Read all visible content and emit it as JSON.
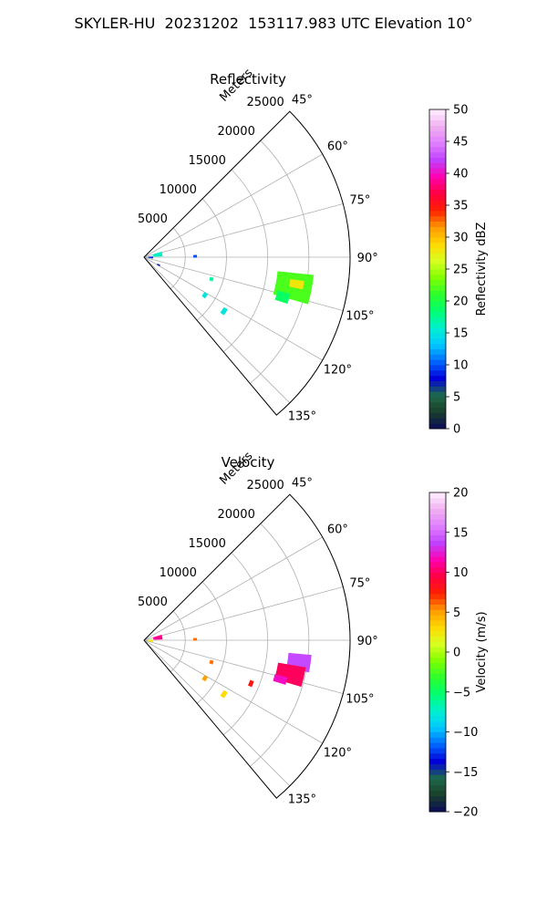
{
  "figure": {
    "title": "SKYLER-HU  20231202  153117.983 UTC Elevation 10°"
  },
  "chart_data": [
    {
      "type": "ppi-sector",
      "title": "Reflectivity",
      "range_label": "Meters",
      "range_ticks": [
        5000,
        10000,
        15000,
        20000,
        25000
      ],
      "range_max": 25000,
      "azimuth_ticks": [
        "45°",
        "60°",
        "75°",
        "90°",
        "105°",
        "120°",
        "135°"
      ],
      "azimuth_range_deg": [
        45,
        140
      ],
      "grid": true,
      "colorbar": {
        "label": "Reflectivity dBZ",
        "min": 0,
        "max": 50,
        "ticks": [
          "0",
          "5",
          "10",
          "15",
          "20",
          "25",
          "30",
          "35",
          "40",
          "45",
          "50"
        ],
        "stops": [
          "#0b0b5a",
          "#1a3f2a",
          "#1e6a4a",
          "#0000d8",
          "#0066ff",
          "#00c8ff",
          "#00f0d0",
          "#00ff70",
          "#2cff2c",
          "#80ff00",
          "#d8ff20",
          "#ffd800",
          "#ff9a00",
          "#ff2000",
          "#ff0040",
          "#ff00b0",
          "#c040ff",
          "#e080ff",
          "#f0b0f0",
          "#fff0ff"
        ]
      },
      "echoes": [
        {
          "range_m": 18500,
          "azimuth_deg": 101,
          "radial_extent_m": 4400,
          "az_extent_deg": 10,
          "value": 22
        },
        {
          "range_m": 18800,
          "azimuth_deg": 100,
          "radial_extent_m": 1700,
          "az_extent_deg": 3,
          "value": 28
        },
        {
          "range_m": 17500,
          "azimuth_deg": 106,
          "radial_extent_m": 1600,
          "az_extent_deg": 4,
          "value": 19
        },
        {
          "range_m": 1700,
          "azimuth_deg": 80,
          "radial_extent_m": 1100,
          "az_extent_deg": 15,
          "value": 16
        },
        {
          "range_m": 800,
          "azimuth_deg": 92,
          "radial_extent_m": 600,
          "az_extent_deg": 14,
          "value": 9
        },
        {
          "range_m": 6200,
          "azimuth_deg": 89,
          "radial_extent_m": 450,
          "az_extent_deg": 3,
          "value": 10
        },
        {
          "range_m": 8600,
          "azimuth_deg": 108,
          "radial_extent_m": 450,
          "az_extent_deg": 3,
          "value": 17
        },
        {
          "range_m": 8700,
          "azimuth_deg": 122,
          "radial_extent_m": 500,
          "az_extent_deg": 4,
          "value": 15
        },
        {
          "range_m": 11700,
          "azimuth_deg": 124,
          "radial_extent_m": 550,
          "az_extent_deg": 4,
          "value": 15
        },
        {
          "range_m": 2000,
          "azimuth_deg": 118,
          "radial_extent_m": 400,
          "az_extent_deg": 5,
          "value": 7
        }
      ]
    },
    {
      "type": "ppi-sector",
      "title": "Velocity",
      "range_label": "Meters",
      "range_ticks": [
        5000,
        10000,
        15000,
        20000,
        25000
      ],
      "range_max": 25000,
      "azimuth_ticks": [
        "45°",
        "60°",
        "75°",
        "90°",
        "105°",
        "120°",
        "135°"
      ],
      "azimuth_range_deg": [
        45,
        140
      ],
      "grid": true,
      "colorbar": {
        "label": "Velocity (m/s)",
        "min": -20,
        "max": 20,
        "ticks": [
          "−20",
          "−15",
          "−10",
          "−5",
          "0",
          "5",
          "10",
          "15",
          "20"
        ],
        "stops": [
          "#0b0b5a",
          "#1a3f2a",
          "#1e6a4a",
          "#0000d8",
          "#0066ff",
          "#00c8ff",
          "#00f0d0",
          "#00ff70",
          "#2cff2c",
          "#80ff00",
          "#d8ff20",
          "#ffd800",
          "#ff9a00",
          "#ff2000",
          "#ff0040",
          "#ff00b0",
          "#c040ff",
          "#e080ff",
          "#f0b0f0",
          "#fff0ff"
        ]
      },
      "echoes": [
        {
          "range_m": 19000,
          "azimuth_deg": 98,
          "radial_extent_m": 2800,
          "az_extent_deg": 6,
          "value": 14
        },
        {
          "range_m": 18200,
          "azimuth_deg": 103,
          "radial_extent_m": 3400,
          "az_extent_deg": 7,
          "value": 10
        },
        {
          "range_m": 17200,
          "azimuth_deg": 106,
          "radial_extent_m": 1600,
          "az_extent_deg": 3,
          "value": 12
        },
        {
          "range_m": 1700,
          "azimuth_deg": 80,
          "radial_extent_m": 1100,
          "az_extent_deg": 15,
          "value": 11
        },
        {
          "range_m": 800,
          "azimuth_deg": 95,
          "radial_extent_m": 600,
          "az_extent_deg": 18,
          "value": 2
        },
        {
          "range_m": 6200,
          "azimuth_deg": 89,
          "radial_extent_m": 450,
          "az_extent_deg": 3,
          "value": 6
        },
        {
          "range_m": 8600,
          "azimuth_deg": 108,
          "radial_extent_m": 450,
          "az_extent_deg": 3,
          "value": 6
        },
        {
          "range_m": 8700,
          "azimuth_deg": 122,
          "radial_extent_m": 500,
          "az_extent_deg": 4,
          "value": 5
        },
        {
          "range_m": 11700,
          "azimuth_deg": 124,
          "radial_extent_m": 550,
          "az_extent_deg": 4,
          "value": 3
        },
        {
          "range_m": 14000,
          "azimuth_deg": 112,
          "radial_extent_m": 500,
          "az_extent_deg": 3,
          "value": 8
        }
      ]
    }
  ]
}
